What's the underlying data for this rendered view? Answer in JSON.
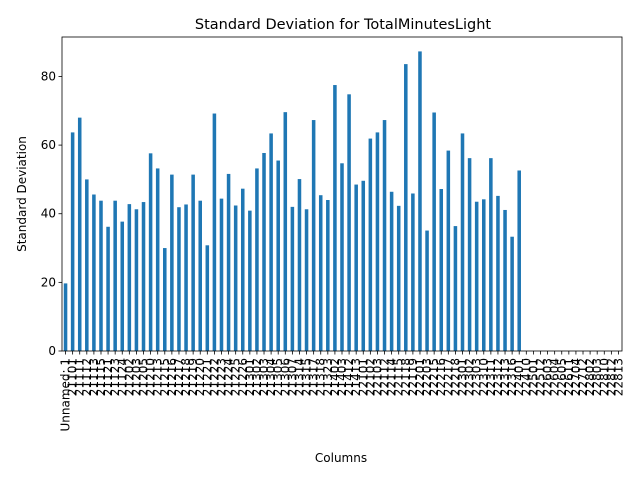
{
  "chart_data": {
    "type": "bar",
    "title": "Standard Deviation for TotalMinutesLight",
    "xlabel": "Columns",
    "ylabel": "Standard Deviation",
    "ylim": [
      0,
      91.5
    ],
    "yticks": [
      0,
      20,
      40,
      60,
      80
    ],
    "grid": false,
    "legend": "none",
    "bar_color": "#1f77b4",
    "categories": [
      "Unnamed: 1",
      "21101",
      "21111",
      "21112",
      "21113",
      "21115",
      "21121",
      "21123",
      "21124",
      "21202",
      "21203",
      "21205",
      "21210",
      "21213",
      "21215",
      "21216",
      "21217",
      "21218",
      "21219",
      "21220",
      "21221",
      "21222",
      "21223",
      "21224",
      "21225",
      "21226",
      "21301",
      "21302",
      "21303",
      "21304",
      "21305",
      "21306",
      "21307",
      "21314",
      "21315",
      "21317",
      "21318",
      "21323",
      "21402",
      "21403",
      "21412",
      "21413",
      "22101",
      "22102",
      "22103",
      "22112",
      "22114",
      "22115",
      "22118",
      "22119",
      "22201",
      "22203",
      "22215",
      "22216",
      "22217",
      "22218",
      "22301",
      "22302",
      "22303",
      "22310",
      "22311",
      "22312",
      "22313",
      "22316",
      "22401",
      "22410",
      "22501",
      "22512",
      "22603",
      "22604",
      "22605",
      "22611",
      "22704",
      "22712",
      "22802",
      "22803",
      "22810",
      "22812",
      "22813"
    ],
    "values": [
      19.7,
      63.7,
      68.0,
      50.0,
      45.6,
      43.8,
      36.2,
      43.8,
      37.7,
      42.8,
      41.3,
      43.4,
      57.6,
      53.2,
      30.0,
      51.4,
      41.9,
      42.7,
      51.4,
      43.8,
      30.8,
      69.2,
      44.4,
      51.6,
      42.4,
      47.3,
      40.9,
      53.2,
      57.7,
      63.4,
      55.5,
      69.6,
      42.0,
      50.1,
      41.3,
      67.3,
      45.4,
      44.0,
      77.5,
      54.7,
      74.8,
      48.5,
      49.6,
      61.9,
      63.7,
      67.3,
      46.4,
      42.3,
      83.6,
      45.9,
      87.3,
      35.1,
      69.5,
      47.2,
      58.4,
      36.4,
      63.4,
      56.2,
      43.5,
      44.2,
      56.2,
      45.2,
      41.1,
      33.3,
      52.6,
      0,
      0,
      0,
      0,
      0,
      0,
      0,
      0,
      0,
      0,
      0,
      0,
      0,
      0
    ]
  }
}
